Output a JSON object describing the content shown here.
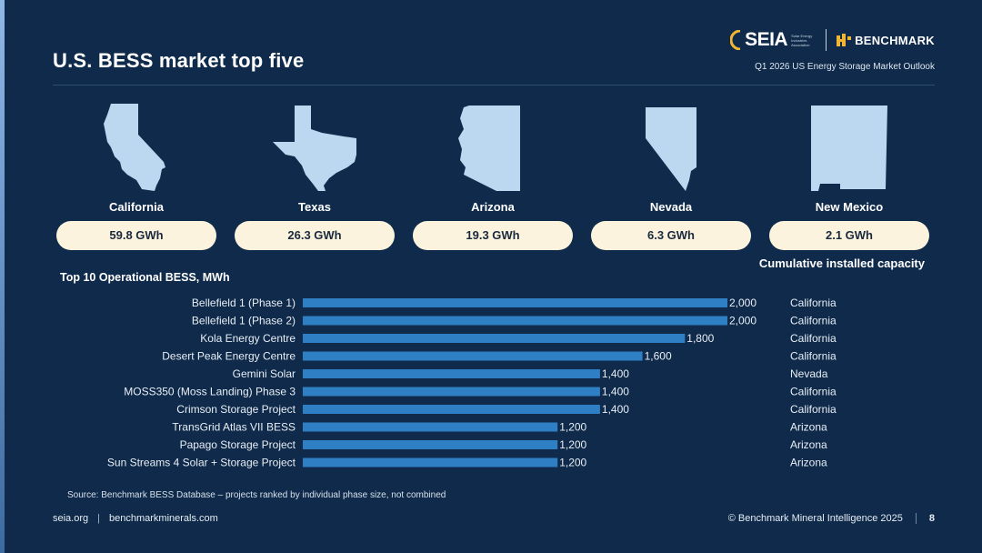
{
  "header": {
    "title": "U.S. BESS market top five",
    "report": "Q1 2026 US Energy Storage Market Outlook",
    "logo_seia": "SEIA",
    "logo_seia_small": "Solar Energy Industries Association",
    "logo_benchmark": "BENCHMARK"
  },
  "states": [
    {
      "name": "California",
      "capacity": "59.8 GWh"
    },
    {
      "name": "Texas",
      "capacity": "26.3 GWh"
    },
    {
      "name": "Arizona",
      "capacity": "19.3 GWh"
    },
    {
      "name": "Nevada",
      "capacity": "6.3 GWh"
    },
    {
      "name": "New Mexico",
      "capacity": "2.1 GWh"
    }
  ],
  "capacity_caption": "Cumulative installed capacity",
  "chart_data": {
    "type": "bar",
    "orientation": "horizontal",
    "title": "Top 10 Operational BESS, MWh",
    "categories": [
      "Bellefield 1 (Phase 1)",
      "Bellefield 1 (Phase 2)",
      "Kola Energy Centre",
      "Desert Peak Energy Centre",
      "Gemini Solar",
      "MOSS350 (Moss Landing) Phase 3",
      "Crimson Storage Project",
      "TransGrid Atlas VII BESS",
      "Papago Storage Project",
      "Sun Streams 4 Solar + Storage Project"
    ],
    "values": [
      2000,
      2000,
      1800,
      1600,
      1400,
      1400,
      1400,
      1200,
      1200,
      1200
    ],
    "value_labels": [
      "2,000",
      "2,000",
      "1,800",
      "1,600",
      "1,400",
      "1,400",
      "1,400",
      "1,200",
      "1,200",
      "1,200"
    ],
    "locations": [
      "California",
      "California",
      "California",
      "California",
      "Nevada",
      "California",
      "California",
      "Arizona",
      "Arizona",
      "Arizona"
    ],
    "xlim": [
      0,
      2000
    ],
    "bar_color": "#2e7fc4",
    "grid": false
  },
  "source": "Source: Benchmark BESS Database – projects ranked by individual phase size, not combined",
  "footer": {
    "site1": "seia.org",
    "site2": "benchmarkminerals.com",
    "copyright": "© Benchmark Mineral Intelligence 2025",
    "page": "8"
  },
  "colors": {
    "background": "#0f2a4a",
    "state_fill": "#bcd8f1",
    "pill": "#fbf3dd",
    "seia_accent": "#f2b632",
    "benchmark_accent": "#f2b632"
  }
}
